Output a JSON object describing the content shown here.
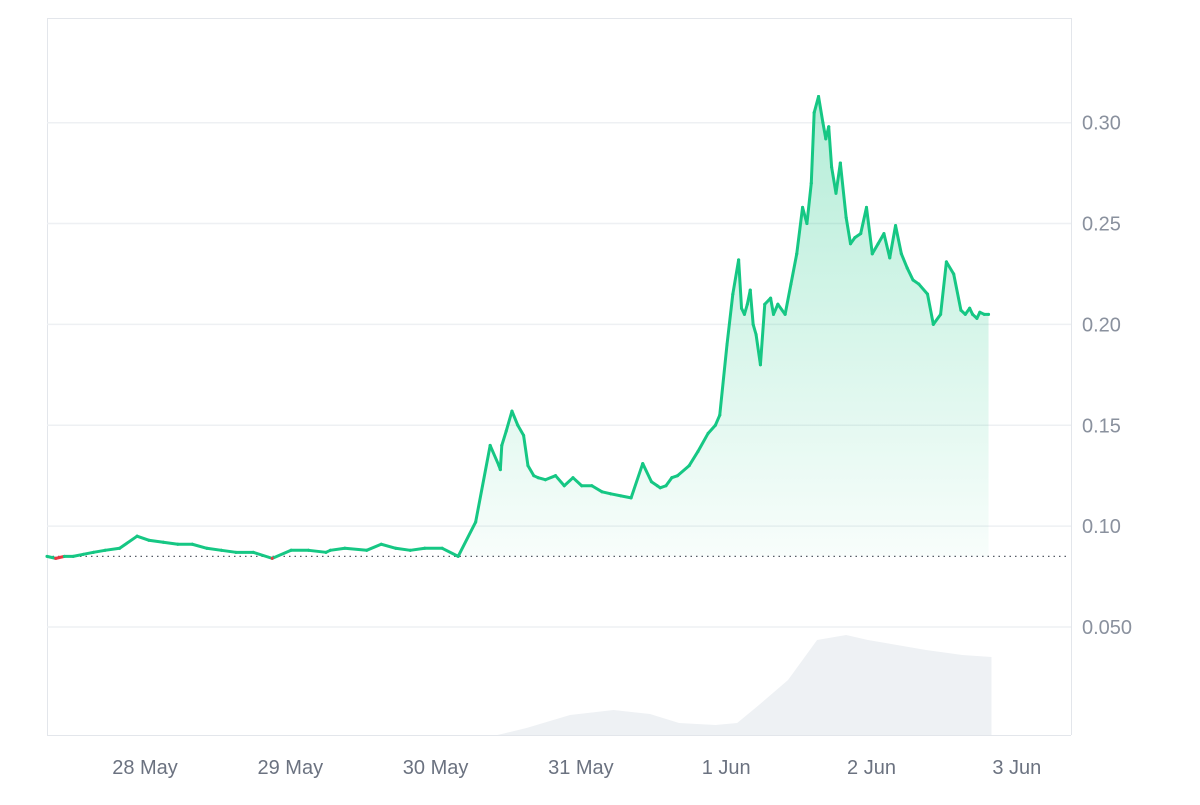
{
  "chart_data": {
    "type": "line",
    "title": "",
    "xlabel": "",
    "ylabel": "",
    "x_tick_labels": [
      "28 May",
      "29 May",
      "30 May",
      "31 May",
      "1 Jun",
      "2 Jun",
      "3 Jun"
    ],
    "y_tick_labels": [
      "0.050",
      "0.10",
      "0.15",
      "0.20",
      "0.25",
      "0.30"
    ],
    "y_ticks": [
      0.05,
      0.1,
      0.15,
      0.2,
      0.25,
      0.3
    ],
    "ylim": [
      0.0,
      0.35
    ],
    "xlim_days": [
      "27 May",
      "3 Jun"
    ],
    "grid": true,
    "baseline": 0.085,
    "colors": {
      "up": "#16c784",
      "down": "#ea3943",
      "area_top": "#16c784",
      "grid": "#eef0f3",
      "volume": "#eef1f4",
      "axis_text": "#8a919e"
    },
    "series": [
      {
        "x_day_offset": [
          0.0,
          0.06,
          0.12,
          0.18,
          0.25,
          0.32,
          0.4,
          0.5,
          0.62,
          0.7,
          0.8,
          0.9,
          1.0,
          1.1,
          1.2,
          1.3,
          1.42,
          1.55,
          1.68,
          1.8,
          1.92,
          1.95,
          2.05,
          2.2,
          2.3,
          2.4,
          2.5,
          2.6,
          2.72,
          2.83,
          2.95,
          3.05,
          3.11,
          3.12,
          3.13,
          3.16,
          3.2,
          3.24,
          3.28,
          3.31,
          3.35,
          3.38,
          3.43,
          3.5,
          3.56,
          3.62,
          3.68,
          3.75,
          3.82,
          3.88,
          3.95,
          4.02,
          4.1,
          4.16,
          4.2,
          4.22,
          4.26,
          4.3,
          4.34,
          4.42,
          4.48,
          4.55,
          4.6,
          4.63,
          4.68,
          4.72,
          4.76,
          4.78,
          4.8,
          4.82,
          4.84,
          4.86,
          4.88,
          4.91,
          4.94,
          4.98,
          5.0,
          5.03,
          5.08,
          5.12,
          5.16,
          5.2,
          5.23,
          5.26,
          5.28,
          5.31,
          5.34,
          5.36,
          5.38,
          5.4,
          5.43,
          5.46,
          5.5,
          5.53,
          5.56,
          5.6,
          5.64,
          5.68,
          5.72,
          5.76,
          5.8,
          5.84,
          5.88,
          5.92,
          5.96,
          6.0,
          6.06,
          6.1,
          6.15,
          6.19,
          6.24,
          6.29,
          6.32,
          6.35,
          6.37,
          6.4,
          6.42,
          6.45,
          6.48
        ],
        "values": [
          0.085,
          0.084,
          0.085,
          0.085,
          0.086,
          0.087,
          0.088,
          0.089,
          0.095,
          0.093,
          0.092,
          0.091,
          0.091,
          0.089,
          0.088,
          0.087,
          0.087,
          0.084,
          0.088,
          0.088,
          0.087,
          0.088,
          0.089,
          0.088,
          0.091,
          0.089,
          0.088,
          0.089,
          0.089,
          0.085,
          0.102,
          0.14,
          0.13,
          0.128,
          0.14,
          0.147,
          0.157,
          0.15,
          0.145,
          0.13,
          0.125,
          0.124,
          0.123,
          0.125,
          0.12,
          0.124,
          0.12,
          0.12,
          0.117,
          0.116,
          0.115,
          0.114,
          0.131,
          0.122,
          0.12,
          0.119,
          0.12,
          0.124,
          0.125,
          0.13,
          0.137,
          0.146,
          0.15,
          0.155,
          0.19,
          0.215,
          0.232,
          0.208,
          0.205,
          0.21,
          0.217,
          0.2,
          0.195,
          0.18,
          0.21,
          0.213,
          0.205,
          0.21,
          0.205,
          0.22,
          0.235,
          0.258,
          0.25,
          0.27,
          0.305,
          0.313,
          0.3,
          0.292,
          0.298,
          0.278,
          0.265,
          0.28,
          0.253,
          0.24,
          0.243,
          0.245,
          0.258,
          0.235,
          0.24,
          0.245,
          0.233,
          0.249,
          0.235,
          0.228,
          0.222,
          0.22,
          0.215,
          0.2,
          0.205,
          0.231,
          0.225,
          0.207,
          0.205,
          0.208,
          0.205,
          0.203,
          0.206,
          0.205,
          0.205
        ]
      }
    ],
    "volume": {
      "x_day_offset": [
        0.0,
        3.1,
        3.3,
        3.6,
        3.9,
        4.15,
        4.35,
        4.6,
        4.75,
        4.9,
        5.1,
        5.3,
        5.5,
        5.65,
        5.85,
        6.05,
        6.3,
        6.5
      ],
      "relative_height": [
        0.0,
        0.0,
        0.07,
        0.2,
        0.25,
        0.21,
        0.12,
        0.1,
        0.12,
        0.3,
        0.55,
        0.95,
        1.0,
        0.95,
        0.9,
        0.85,
        0.8,
        0.78
      ]
    }
  }
}
